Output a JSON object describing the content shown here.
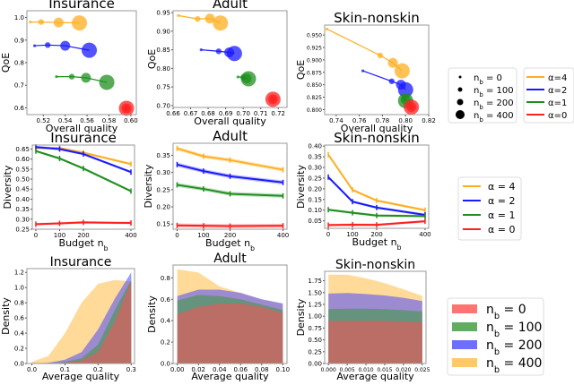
{
  "colors": {
    "alpha4": "#ffae1f",
    "alpha2": "#1a1aff",
    "alpha1": "#1f8f1f",
    "alpha0": "#ff2020",
    "nb0": "#ff5050",
    "nb100": "#3a9a3a",
    "nb200": "#4a4aff",
    "nb400": "#ffbb44"
  },
  "legends": {
    "size": {
      "items": [
        {
          "label": "n_b = 0",
          "size": 0
        },
        {
          "label": "n_b = 100",
          "size": 100
        },
        {
          "label": "n_b = 200",
          "size": 200
        },
        {
          "label": "n_b = 400",
          "size": 400
        }
      ]
    },
    "alpha_top": {
      "items": [
        {
          "label": "α=4",
          "color": "alpha4"
        },
        {
          "label": "α=2",
          "color": "alpha2"
        },
        {
          "label": "α=1",
          "color": "alpha1"
        },
        {
          "label": "α=0",
          "color": "alpha0"
        }
      ]
    },
    "alpha_mid": {
      "items": [
        {
          "label": "α = 4",
          "color": "alpha4"
        },
        {
          "label": "α = 2",
          "color": "alpha2"
        },
        {
          "label": "α = 1",
          "color": "alpha1"
        },
        {
          "label": "α = 0",
          "color": "alpha0"
        }
      ]
    },
    "density": {
      "items": [
        {
          "label": "n_b = 0",
          "color": "nb0"
        },
        {
          "label": "n_b = 100",
          "color": "nb100"
        },
        {
          "label": "n_b = 200",
          "color": "nb200"
        },
        {
          "label": "n_b = 400",
          "color": "nb400"
        }
      ]
    }
  },
  "chart_data": [
    {
      "type": "scatter",
      "title": "Insurance",
      "xlabel": "Overall quality",
      "ylabel": "QoE",
      "xlim": [
        0.505,
        0.605
      ],
      "ylim": [
        0.57,
        1.03
      ],
      "xticks": [
        "0.52",
        "0.54",
        "0.56",
        "0.58",
        "0.60"
      ],
      "yticks": [
        "0.6",
        "0.7",
        "0.8",
        "0.9",
        "1.0"
      ],
      "series": [
        {
          "name": "α=4",
          "color": "alpha4",
          "points": [
            [
              0.508,
              0.98,
              0
            ],
            [
              0.518,
              0.98,
              100
            ],
            [
              0.534,
              0.978,
              200
            ],
            [
              0.553,
              0.976,
              400
            ]
          ]
        },
        {
          "name": "α=2",
          "color": "alpha2",
          "points": [
            [
              0.512,
              0.875,
              0
            ],
            [
              0.524,
              0.878,
              100
            ],
            [
              0.54,
              0.875,
              200
            ],
            [
              0.562,
              0.855,
              400
            ]
          ]
        },
        {
          "name": "α=1",
          "color": "alpha1",
          "points": [
            [
              0.532,
              0.738,
              0
            ],
            [
              0.546,
              0.738,
              100
            ],
            [
              0.559,
              0.733,
              200
            ],
            [
              0.578,
              0.713,
              400
            ]
          ]
        },
        {
          "name": "α=0",
          "color": "alpha0",
          "points": [
            [
              0.596,
              0.598,
              0
            ],
            [
              0.596,
              0.598,
              100
            ],
            [
              0.596,
              0.598,
              200
            ],
            [
              0.596,
              0.598,
              400
            ]
          ]
        }
      ]
    },
    {
      "type": "scatter",
      "title": "Adult",
      "xlabel": "Overall quality",
      "ylabel": "QoE",
      "xlim": [
        0.66,
        0.725
      ],
      "ylim": [
        0.695,
        0.955
      ],
      "xticks": [
        "0.66",
        "0.67",
        "0.68",
        "0.69",
        "0.70",
        "0.71",
        "0.72"
      ],
      "yticks": [
        "0.70",
        "0.75",
        "0.80",
        "0.85",
        "0.90",
        "0.95"
      ],
      "series": [
        {
          "name": "α=4",
          "color": "alpha4",
          "points": [
            [
              0.663,
              0.942,
              0
            ],
            [
              0.674,
              0.933,
              100
            ],
            [
              0.681,
              0.934,
              200
            ],
            [
              0.687,
              0.922,
              400
            ]
          ]
        },
        {
          "name": "α=2",
          "color": "alpha2",
          "points": [
            [
              0.676,
              0.85,
              0
            ],
            [
              0.686,
              0.846,
              100
            ],
            [
              0.692,
              0.843,
              200
            ],
            [
              0.695,
              0.84,
              400
            ]
          ]
        },
        {
          "name": "α=1",
          "color": "alpha1",
          "points": [
            [
              0.697,
              0.777,
              0
            ],
            [
              0.7,
              0.776,
              100
            ],
            [
              0.702,
              0.773,
              200
            ],
            [
              0.703,
              0.772,
              400
            ]
          ]
        },
        {
          "name": "α=0",
          "color": "alpha0",
          "points": [
            [
              0.717,
              0.717,
              0
            ],
            [
              0.717,
              0.717,
              100
            ],
            [
              0.717,
              0.717,
              200
            ],
            [
              0.717,
              0.717,
              400
            ]
          ]
        }
      ]
    },
    {
      "type": "scatter",
      "title": "Skin-nonskin",
      "xlabel": "Overall quality",
      "ylabel": "QoE",
      "xlim": [
        0.73,
        0.82
      ],
      "ylim": [
        0.79,
        0.97
      ],
      "xticks": [
        "0.74",
        "0.76",
        "0.78",
        "0.80",
        "0.82"
      ],
      "yticks": [
        "0.800",
        "0.825",
        "0.850",
        "0.875",
        "0.900",
        "0.925",
        "0.950"
      ],
      "series": [
        {
          "name": "α=4",
          "color": "alpha4",
          "points": [
            [
              0.732,
              0.962,
              0
            ],
            [
              0.778,
              0.909,
              100
            ],
            [
              0.789,
              0.894,
              200
            ],
            [
              0.797,
              0.878,
              400
            ]
          ]
        },
        {
          "name": "α=2",
          "color": "alpha2",
          "points": [
            [
              0.763,
              0.878,
              0
            ],
            [
              0.788,
              0.857,
              100
            ],
            [
              0.796,
              0.85,
              200
            ],
            [
              0.8,
              0.84,
              400
            ]
          ]
        },
        {
          "name": "α=1",
          "color": "alpha1",
          "points": [
            [
              0.798,
              0.825,
              0
            ],
            [
              0.799,
              0.822,
              100
            ],
            [
              0.8,
              0.82,
              200
            ],
            [
              0.8,
              0.818,
              400
            ]
          ]
        },
        {
          "name": "α=0",
          "color": "alpha0",
          "points": [
            [
              0.805,
              0.805,
              0
            ],
            [
              0.805,
              0.805,
              100
            ],
            [
              0.805,
              0.805,
              200
            ],
            [
              0.805,
              0.805,
              400
            ]
          ]
        }
      ]
    },
    {
      "type": "line",
      "title": "Insurance",
      "xlabel": "Budget n_b",
      "ylabel": "Diversity",
      "x": [
        0,
        100,
        200,
        400
      ],
      "xlim": [
        -15,
        415
      ],
      "ylim": [
        0.25,
        0.67
      ],
      "xticks": [
        "0",
        "100",
        "200",
        "400"
      ],
      "yticks": [
        "0.25",
        "0.30",
        "0.35",
        "0.40",
        "0.45",
        "0.50",
        "0.55",
        "0.60",
        "0.65"
      ],
      "series": [
        {
          "name": "α = 4",
          "color": "alpha4",
          "values": [
            0.655,
            0.655,
            0.632,
            0.575
          ]
        },
        {
          "name": "α = 2",
          "color": "alpha2",
          "values": [
            0.66,
            0.65,
            0.625,
            0.535
          ]
        },
        {
          "name": "α = 1",
          "color": "alpha1",
          "values": [
            0.64,
            0.603,
            0.553,
            0.44
          ]
        },
        {
          "name": "α = 0",
          "color": "alpha0",
          "values": [
            0.275,
            0.279,
            0.284,
            0.281
          ]
        }
      ]
    },
    {
      "type": "line",
      "title": "Adult",
      "xlabel": "Budget n_b",
      "ylabel": "Diversity",
      "x": [
        0,
        100,
        200,
        400
      ],
      "xlim": [
        -15,
        415
      ],
      "ylim": [
        0.135,
        0.385
      ],
      "xticks": [
        "0",
        "100",
        "200",
        "400"
      ],
      "yticks": [
        "0.15",
        "0.20",
        "0.25",
        "0.30",
        "0.35"
      ],
      "series": [
        {
          "name": "α = 4",
          "color": "alpha4",
          "values": [
            0.37,
            0.347,
            0.336,
            0.308
          ]
        },
        {
          "name": "α = 2",
          "color": "alpha2",
          "values": [
            0.323,
            0.304,
            0.289,
            0.271
          ]
        },
        {
          "name": "α = 1",
          "color": "alpha1",
          "values": [
            0.264,
            0.252,
            0.238,
            0.232
          ]
        },
        {
          "name": "α = 0",
          "color": "alpha0",
          "values": [
            0.146,
            0.145,
            0.144,
            0.145
          ]
        }
      ]
    },
    {
      "type": "line",
      "title": "Skin-nonskin",
      "xlabel": "Budget n_b",
      "ylabel": "Diversity",
      "x": [
        0,
        100,
        200,
        400
      ],
      "xlim": [
        -15,
        415
      ],
      "ylim": [
        0.015,
        0.405
      ],
      "xticks": [
        "0",
        "100",
        "200",
        "400"
      ],
      "yticks": [
        "0.05",
        "0.10",
        "0.15",
        "0.20",
        "0.25",
        "0.30",
        "0.35",
        "0.40"
      ],
      "series": [
        {
          "name": "α = 4",
          "color": "alpha4",
          "values": [
            0.36,
            0.195,
            0.145,
            0.1
          ]
        },
        {
          "name": "α = 2",
          "color": "alpha2",
          "values": [
            0.255,
            0.14,
            0.112,
            0.078
          ]
        },
        {
          "name": "α = 1",
          "color": "alpha1",
          "values": [
            0.102,
            0.088,
            0.075,
            0.072
          ]
        },
        {
          "name": "α = 0",
          "color": "alpha0",
          "values": [
            0.03,
            0.032,
            0.031,
            0.048
          ]
        }
      ]
    },
    {
      "type": "area",
      "title": "Insurance",
      "xlabel": "Average quality",
      "ylabel": "Density",
      "x": [
        0,
        0.05,
        0.1,
        0.15,
        0.2,
        0.25,
        0.3
      ],
      "xlim": [
        -0.015,
        0.31
      ],
      "ylim": [
        0,
        1.25
      ],
      "xticks": [
        "0.0",
        "0.1",
        "0.2",
        "0.3"
      ],
      "yticks": [
        "0.0",
        "0.2",
        "0.4",
        "0.6",
        "0.8",
        "1.0",
        "1.2"
      ],
      "series": [
        {
          "name": "n_b = 400",
          "color": "nb400",
          "values": [
            0.02,
            0.1,
            0.4,
            0.8,
            1.05,
            1.1,
            1.08
          ]
        },
        {
          "name": "n_b = 200",
          "color": "nb200",
          "values": [
            0,
            0.01,
            0.05,
            0.15,
            0.45,
            0.85,
            1.2
          ]
        },
        {
          "name": "n_b = 100",
          "color": "nb100",
          "values": [
            0,
            0,
            0.02,
            0.07,
            0.25,
            0.7,
            1.1
          ]
        },
        {
          "name": "n_b = 0",
          "color": "nb0",
          "values": [
            0,
            0,
            0.01,
            0.04,
            0.15,
            0.55,
            1.08
          ]
        }
      ]
    },
    {
      "type": "area",
      "title": "Adult",
      "xlabel": "Average quality",
      "ylabel": "Density",
      "x": [
        0,
        0.02,
        0.04,
        0.06,
        0.08,
        0.1
      ],
      "xlim": [
        -0.004,
        0.104
      ],
      "ylim": [
        0,
        0.92
      ],
      "xticks": [
        "0.00",
        "0.02",
        "0.04",
        "0.06",
        "0.08",
        "0.10"
      ],
      "yticks": [
        "0.0",
        "0.2",
        "0.4",
        "0.6",
        "0.8"
      ],
      "series": [
        {
          "name": "n_b = 400",
          "color": "nb400",
          "values": [
            0.88,
            0.85,
            0.72,
            0.66,
            0.6,
            0.56
          ]
        },
        {
          "name": "n_b = 200",
          "color": "nb200",
          "values": [
            0.63,
            0.69,
            0.69,
            0.66,
            0.6,
            0.56
          ]
        },
        {
          "name": "n_b = 100",
          "color": "nb100",
          "values": [
            0.59,
            0.64,
            0.63,
            0.6,
            0.55,
            0.5
          ]
        },
        {
          "name": "n_b = 0",
          "color": "nb0",
          "values": [
            0.46,
            0.53,
            0.56,
            0.56,
            0.53,
            0.47
          ]
        }
      ]
    },
    {
      "type": "area",
      "title": "Skin-nonskin",
      "xlabel": "Average quality",
      "ylabel": "Density",
      "x": [
        0,
        0.005,
        0.01,
        0.015,
        0.02,
        0.025
      ],
      "xlim": [
        -0.001,
        0.026
      ],
      "ylim": [
        0,
        1.95
      ],
      "xticks": [
        "0.000",
        "0.005",
        "0.010",
        "0.015",
        "0.020",
        "0.025"
      ],
      "yticks": [
        "0.00",
        "0.25",
        "0.50",
        "0.75",
        "1.00",
        "1.25",
        "1.50",
        "1.75"
      ],
      "series": [
        {
          "name": "n_b = 400",
          "color": "nb400",
          "values": [
            1.88,
            1.88,
            1.8,
            1.7,
            1.57,
            1.43
          ]
        },
        {
          "name": "n_b = 200",
          "color": "nb200",
          "values": [
            1.48,
            1.49,
            1.47,
            1.44,
            1.39,
            1.32
          ]
        },
        {
          "name": "n_b = 100",
          "color": "nb100",
          "values": [
            1.15,
            1.16,
            1.16,
            1.15,
            1.13,
            1.1
          ]
        },
        {
          "name": "n_b = 0",
          "color": "nb0",
          "values": [
            0.9,
            0.9,
            0.9,
            0.9,
            0.89,
            0.88
          ]
        }
      ]
    }
  ]
}
